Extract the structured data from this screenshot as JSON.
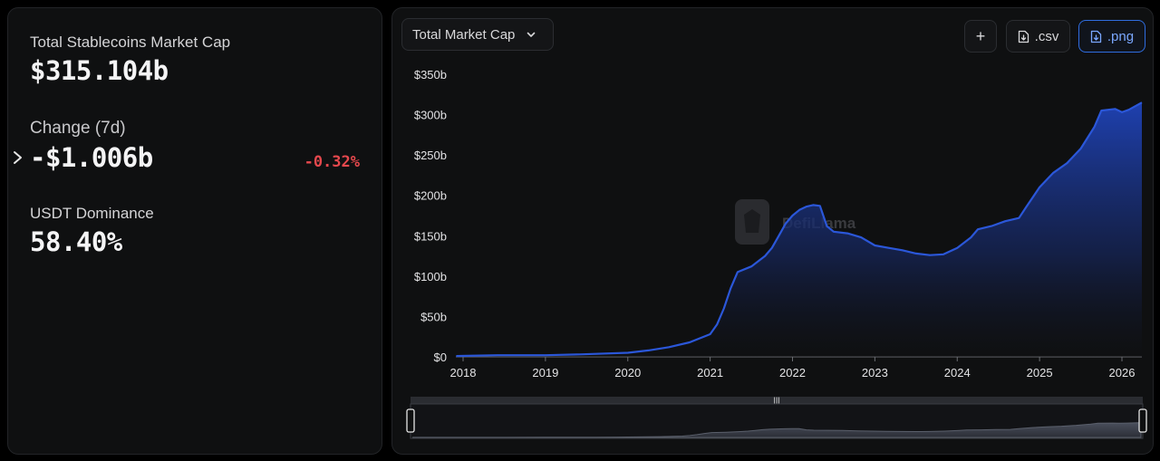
{
  "stats": {
    "market_cap_label": "Total Stablecoins Market Cap",
    "market_cap_value": "$315.104b",
    "change_label": "Change (7d)",
    "change_value": "-$1.006b",
    "change_pct": "-0.32%",
    "dominance_label": "USDT Dominance",
    "dominance_value": "58.40%"
  },
  "toolbar": {
    "metric_select": "Total Market Cap",
    "csv_label": ".csv",
    "png_label": ".png",
    "add_label": "+"
  },
  "watermark": "DefiLlama",
  "colors": {
    "accent": "#2f5be0",
    "negative": "#e5484d",
    "line": "#2b57d9"
  },
  "chart_data": {
    "type": "area",
    "title": "",
    "xlabel": "",
    "ylabel": "",
    "ylim": [
      0,
      350
    ],
    "yticks": [
      "$0",
      "$50b",
      "$100b",
      "$150b",
      "$200b",
      "$250b",
      "$300b",
      "$350b"
    ],
    "xticks": [
      "2018",
      "2019",
      "2020",
      "2021",
      "2022",
      "2023",
      "2024",
      "2025",
      "2026"
    ],
    "grid": false,
    "series": [
      {
        "values_unit": "USD billions",
        "points": [
          [
            "2017-12",
            1
          ],
          [
            "2018-06",
            2
          ],
          [
            "2019-01",
            2
          ],
          [
            "2019-06",
            3
          ],
          [
            "2020-01",
            5
          ],
          [
            "2020-04",
            8
          ],
          [
            "2020-07",
            12
          ],
          [
            "2020-10",
            18
          ],
          [
            "2021-01",
            28
          ],
          [
            "2021-02",
            40
          ],
          [
            "2021-03",
            60
          ],
          [
            "2021-04",
            85
          ],
          [
            "2021-05",
            105
          ],
          [
            "2021-07",
            112
          ],
          [
            "2021-09",
            125
          ],
          [
            "2021-10",
            135
          ],
          [
            "2021-11",
            150
          ],
          [
            "2021-12",
            165
          ],
          [
            "2022-01",
            175
          ],
          [
            "2022-02",
            182
          ],
          [
            "2022-03",
            186
          ],
          [
            "2022-04",
            188
          ],
          [
            "2022-05",
            187
          ],
          [
            "2022-06",
            162
          ],
          [
            "2022-07",
            155
          ],
          [
            "2022-09",
            153
          ],
          [
            "2022-11",
            148
          ],
          [
            "2023-01",
            138
          ],
          [
            "2023-03",
            135
          ],
          [
            "2023-05",
            132
          ],
          [
            "2023-07",
            128
          ],
          [
            "2023-09",
            126
          ],
          [
            "2023-11",
            127
          ],
          [
            "2024-01",
            135
          ],
          [
            "2024-03",
            148
          ],
          [
            "2024-04",
            158
          ],
          [
            "2024-06",
            162
          ],
          [
            "2024-08",
            168
          ],
          [
            "2024-10",
            172
          ],
          [
            "2024-11",
            185
          ],
          [
            "2025-01",
            210
          ],
          [
            "2025-03",
            228
          ],
          [
            "2025-05",
            240
          ],
          [
            "2025-07",
            258
          ],
          [
            "2025-09",
            285
          ],
          [
            "2025-10",
            305
          ],
          [
            "2025-12",
            307
          ],
          [
            "2026-01",
            303
          ],
          [
            "2026-02",
            306
          ],
          [
            "2026-04",
            315
          ]
        ]
      }
    ]
  }
}
